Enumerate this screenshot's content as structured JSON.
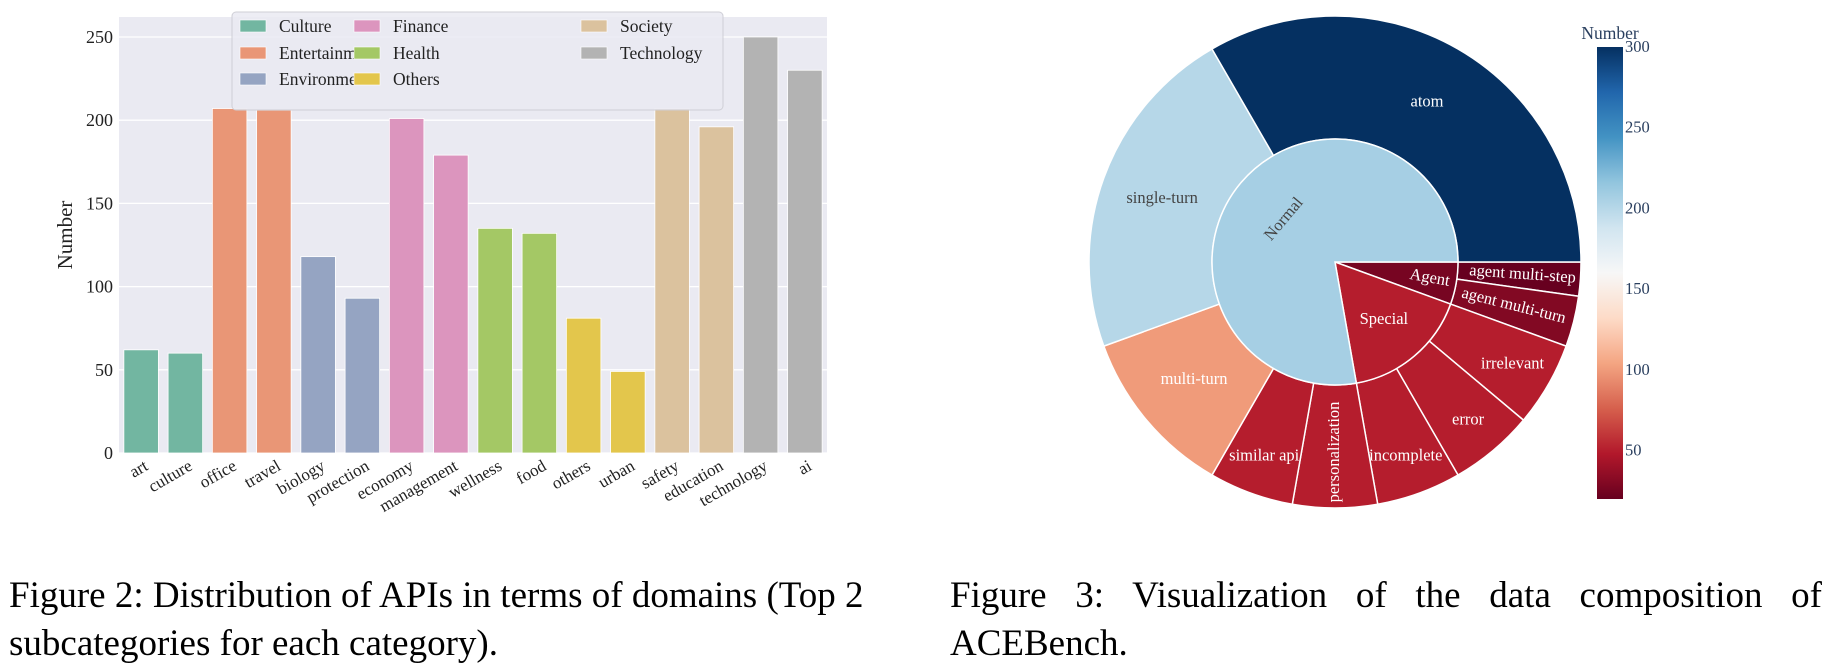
{
  "captions": {
    "figure2": "Figure 2: Distribution of APIs in terms of domains (Top 2 subcategories for each category).",
    "figure3": "Figure 3:  Visualization of the data composition of ACEBench."
  },
  "chart_data": [
    {
      "type": "bar",
      "title": "",
      "xlabel": "",
      "ylabel": "Number",
      "ylim": [
        0,
        262
      ],
      "yticks": [
        0,
        50,
        100,
        150,
        200,
        250
      ],
      "grid": true,
      "legend_placement": "top-center",
      "legend": [
        {
          "name": "Culture",
          "color": "#72b6a1"
        },
        {
          "name": "Entertainment",
          "color": "#e99676"
        },
        {
          "name": "Environment",
          "color": "#95a4c2"
        },
        {
          "name": "Finance",
          "color": "#dc95be"
        },
        {
          "name": "Health",
          "color": "#a4c865"
        },
        {
          "name": "Others",
          "color": "#e3c64c"
        },
        {
          "name": "Society",
          "color": "#dbc29e"
        },
        {
          "name": "Technology",
          "color": "#b3b3b3"
        }
      ],
      "categories": [
        "art",
        "culture",
        "office",
        "travel",
        "biology",
        "protection",
        "economy",
        "management",
        "wellness",
        "food",
        "others",
        "urban",
        "safety",
        "education",
        "technology",
        "ai"
      ],
      "groups": [
        "Culture",
        "Culture",
        "Entertainment",
        "Entertainment",
        "Environment",
        "Environment",
        "Finance",
        "Finance",
        "Health",
        "Health",
        "Others",
        "Others",
        "Society",
        "Society",
        "Technology",
        "Technology"
      ],
      "values": [
        62,
        60,
        207,
        206,
        118,
        93,
        201,
        179,
        135,
        132,
        81,
        49,
        207,
        196,
        250,
        230
      ]
    },
    {
      "type": "sunburst",
      "colorbar": {
        "title": "Number",
        "range": [
          20,
          300
        ],
        "ticks": [
          50,
          100,
          150,
          200,
          250,
          300
        ]
      },
      "nodes": [
        {
          "name": "Agent",
          "children": [
            {
              "name": "agent multi-step",
              "value": 20
            },
            {
              "name": "agent multi-turn",
              "value": 30
            }
          ]
        },
        {
          "name": "Special",
          "children": [
            {
              "name": "irrelevant",
              "value": 50
            },
            {
              "name": "error",
              "value": 50
            },
            {
              "name": "incomplete",
              "value": 50
            }
          ]
        },
        {
          "name": "Normal",
          "children": [
            {
              "name": "personalization",
              "value": 50
            },
            {
              "name": "similar api",
              "value": 50
            },
            {
              "name": "multi-turn",
              "value": 100
            },
            {
              "name": "single-turn",
              "value": 200
            },
            {
              "name": "atom",
              "value": 300
            }
          ]
        }
      ]
    }
  ]
}
